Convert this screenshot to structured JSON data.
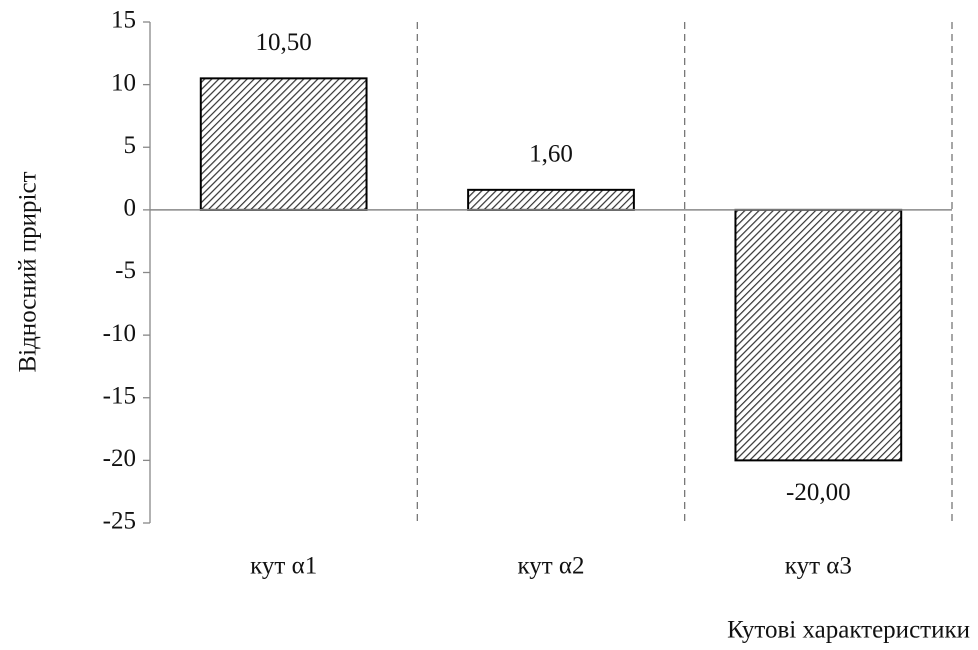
{
  "chart_data": {
    "type": "bar",
    "y_label": "Відносний приріст",
    "x_label": "Кутові характеристики",
    "categories": [
      "кут α1",
      "кут α2",
      "кут α3"
    ],
    "values": [
      10.5,
      1.6,
      -20
    ],
    "value_labels": [
      "10,50",
      "1,60",
      "-20,00"
    ],
    "color": "#444444",
    "ylim": [
      -25,
      15
    ],
    "yticks": [
      -25,
      -20,
      -15,
      -10,
      -5,
      0,
      5,
      10,
      15
    ],
    "category_separators": true
  }
}
